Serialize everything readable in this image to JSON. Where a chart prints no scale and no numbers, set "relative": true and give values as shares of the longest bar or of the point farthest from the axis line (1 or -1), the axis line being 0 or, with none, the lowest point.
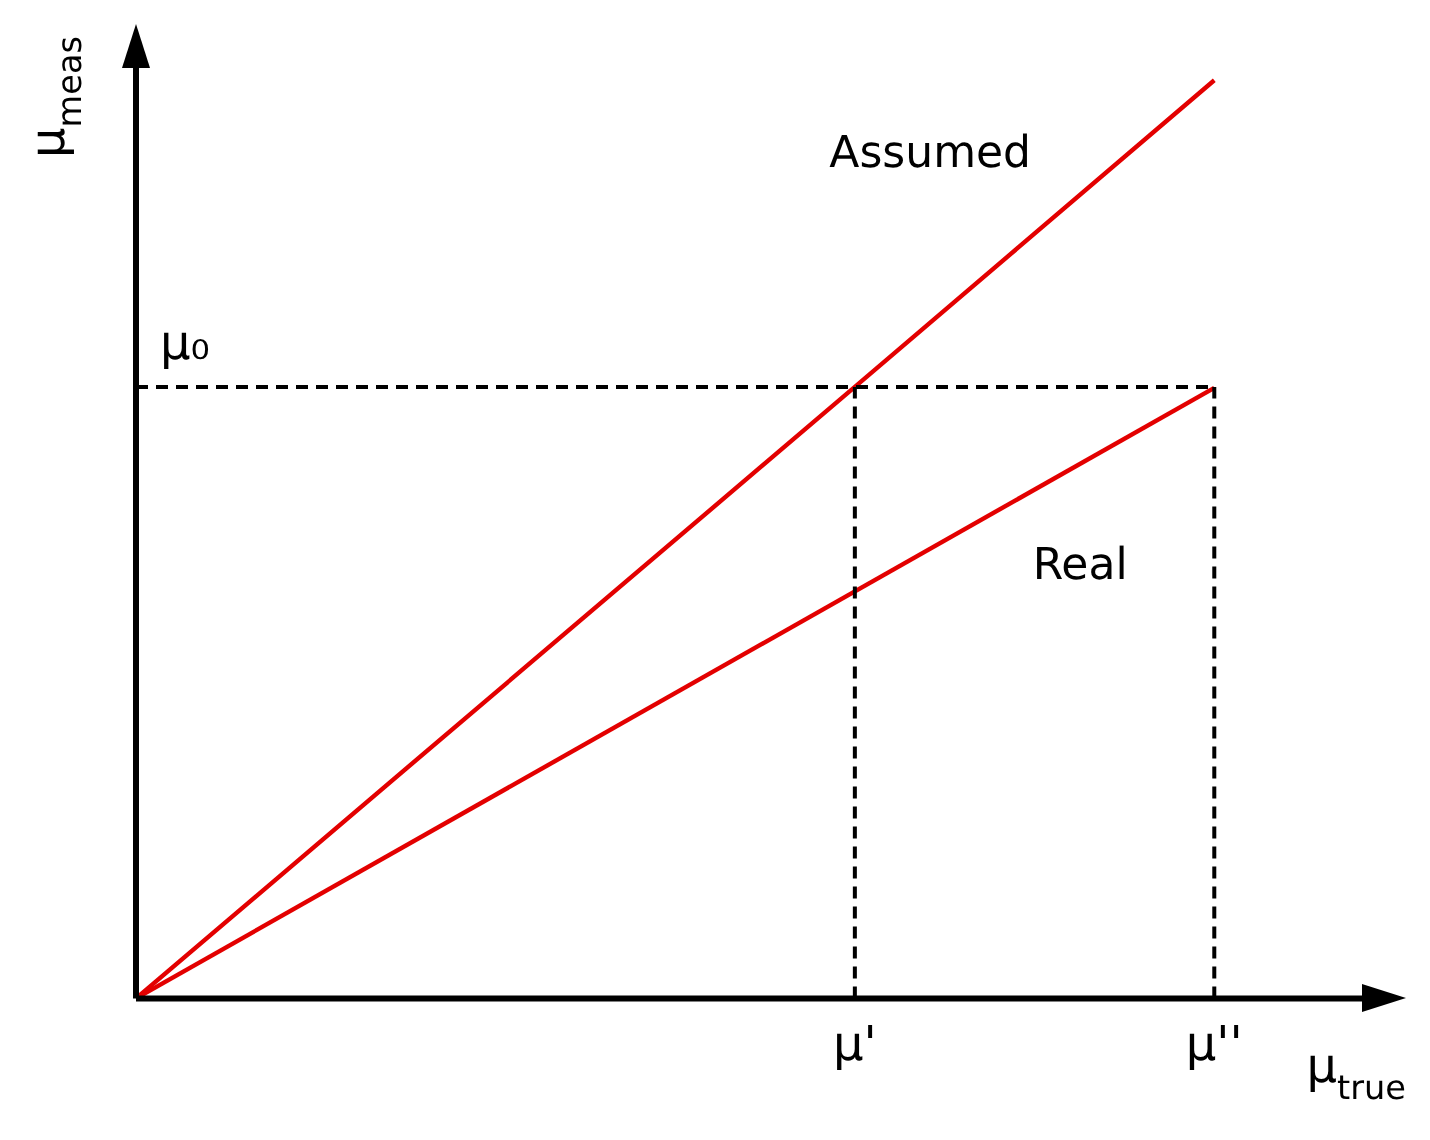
{
  "chart_data": {
    "type": "line",
    "relative": true,
    "xlabel": "μ$_{true}$",
    "ylabel": "μ$_{meas}$",
    "categories": [
      null,
      null,
      null,
      null,
      "μ'",
      null,
      "μ''",
      null
    ],
    "series": [
      {
        "name": "Assumed",
        "color": "#e30000",
        "values": [
          0,
          null,
          null,
          null,
          0.666,
          null,
          1,
          null
        ]
      },
      {
        "name": "Real",
        "color": "#e30000",
        "values": [
          0,
          null,
          null,
          null,
          null,
          null,
          0.665,
          null
        ]
      }
    ],
    "ref_lines": [
      {
        "axis": "y",
        "value": 0.666,
        "label": "μ₀",
        "color": "#000000",
        "line_style": "dashed"
      },
      {
        "axis": "x",
        "value": "μ'",
        "color": "#000000",
        "line_style": "dashed"
      },
      {
        "axis": "x",
        "value": "μ''",
        "color": "#000000",
        "line_style": "dashed"
      }
    ],
    "grid": false,
    "legend": false,
    "marker": "none",
    "line_style": "solid"
  }
}
